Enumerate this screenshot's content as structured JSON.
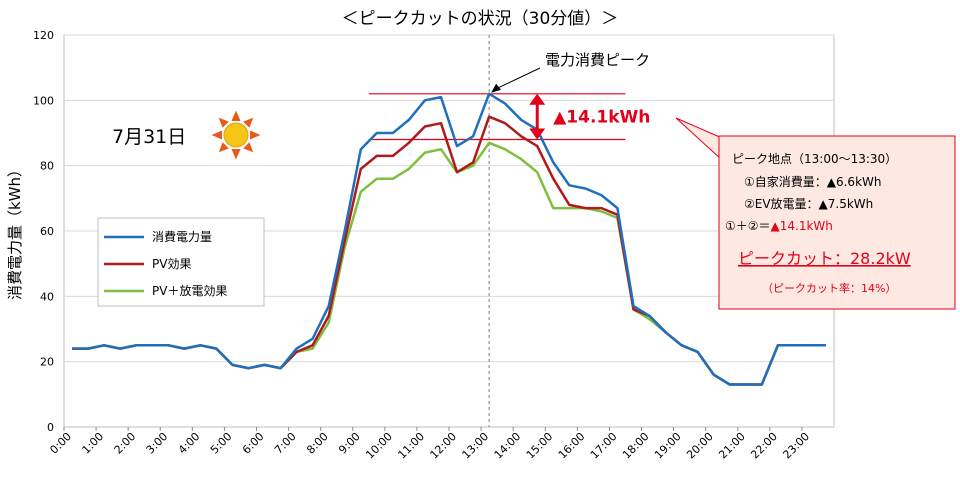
{
  "chart_data": {
    "type": "line",
    "title": "＜ピークカットの状況（30分値）＞",
    "ylabel": "消費電力量（kWh）",
    "ylim": [
      0,
      120
    ],
    "yticks": [
      "0",
      "20",
      "40",
      "60",
      "80",
      "100",
      "120"
    ],
    "ytick_values": [
      0,
      20,
      40,
      60,
      80,
      100,
      120
    ],
    "x_tick_labels": [
      "0:00",
      "1:00",
      "2:00",
      "3:00",
      "4:00",
      "5:00",
      "6:00",
      "7:00",
      "8:00",
      "9:00",
      "10:00",
      "11:00",
      "12:00",
      "13:00",
      "14:00",
      "15:00",
      "16:00",
      "17:00",
      "18:00",
      "19:00",
      "20:00",
      "21:00",
      "22:00",
      "23:00"
    ],
    "grid": true,
    "legend_position": "left",
    "series": [
      {
        "name": "消費電力量",
        "color": "#1f6fbf",
        "values": [
          24,
          24,
          25,
          24,
          25,
          25,
          25,
          24,
          25,
          24,
          19,
          18,
          19,
          18,
          24,
          27,
          37,
          60,
          85,
          90,
          90,
          94,
          100,
          101,
          86,
          89,
          102,
          99,
          94,
          91,
          81,
          74,
          73,
          71,
          67,
          37,
          34,
          29,
          25,
          23,
          16,
          13,
          13,
          13,
          25,
          25,
          25,
          25
        ]
      },
      {
        "name": "PV効果",
        "color": "#b01a1a",
        "values": [
          24,
          24,
          25,
          24,
          25,
          25,
          25,
          24,
          25,
          24,
          19,
          18,
          19,
          18,
          23,
          25,
          34,
          57,
          79,
          83,
          83,
          87,
          92,
          93,
          78,
          81,
          95,
          93,
          89,
          86,
          76,
          68,
          67,
          67,
          65,
          36,
          34,
          29,
          25,
          23,
          16,
          13,
          13,
          13,
          25,
          25,
          25,
          25
        ]
      },
      {
        "name": "PV＋放電効果",
        "color": "#7fbf3f",
        "values": [
          24,
          24,
          25,
          24,
          25,
          25,
          25,
          24,
          25,
          24,
          19,
          18,
          19,
          18,
          23,
          24,
          32,
          55,
          72,
          76,
          76,
          79,
          84,
          85,
          78,
          80,
          87,
          85,
          82,
          78,
          67,
          67,
          67,
          66,
          64,
          36,
          33,
          29,
          25,
          23,
          16,
          13,
          13,
          13,
          25,
          25,
          25,
          25
        ]
      }
    ],
    "annotations": {
      "date": "7月31日",
      "peak_label": "電力消費ピーク",
      "peak_diff": "▲14.1kWh",
      "peak_top": 102,
      "peak_bottom": 88,
      "peak_slot": 26
    }
  },
  "infobox": {
    "line1": "ピーク地点（13:00～13:30）",
    "line2": "①自家消費量：▲6.6kWh",
    "line3": "②EV放電量：▲7.5kWh",
    "line4_prefix": "①＋②＝",
    "line4_value": "▲14.1kWh",
    "peakcut": "ピークカット：28.2kW",
    "rate": "（ピークカット率：14%）"
  },
  "colors": {
    "consumption": "#1f6fbf",
    "pv": "#b01a1a",
    "pv_discharge": "#7fbf3f",
    "accent_red": "#e3001b",
    "grid": "#d9d9d9",
    "box_fill": "#fde9e1",
    "sun": "#f5c518"
  },
  "icons": {
    "sun": "sun-icon"
  }
}
